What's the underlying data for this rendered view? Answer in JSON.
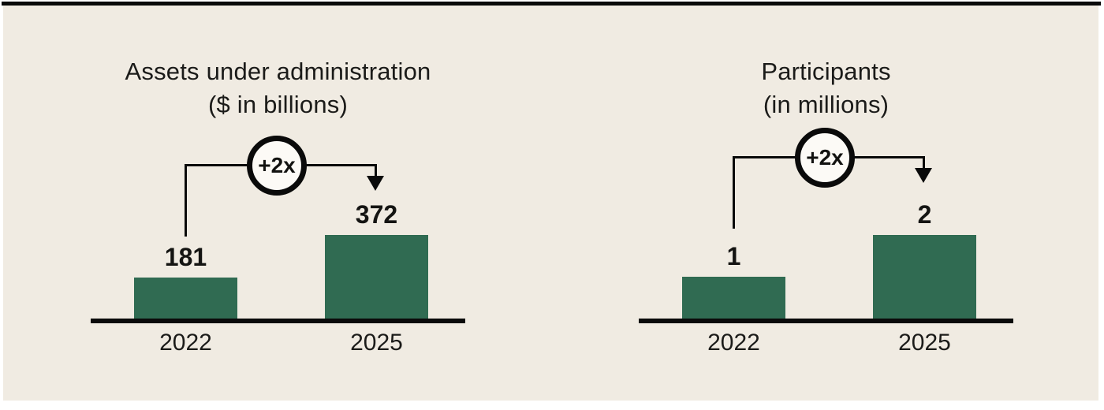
{
  "figure": {
    "background_color": "#f0ebe2",
    "top_rule_color": "#0a0a0a",
    "bar_color": "#306b52",
    "axis_color": "#0a0a0a",
    "badge_fill": "#fcfaf6",
    "text_color": "#1b1b19"
  },
  "chart_data": [
    {
      "type": "bar",
      "title": "Assets under administration",
      "subtitle": "($ in billions)",
      "categories": [
        "2022",
        "2025"
      ],
      "values": [
        181,
        372
      ],
      "value_labels": [
        "181",
        "372"
      ],
      "annotation": "+2x",
      "bar_color": "#306b52",
      "ylim": [
        0,
        372
      ],
      "grid": false,
      "legend": false
    },
    {
      "type": "bar",
      "title": "Participants",
      "subtitle": "(in millions)",
      "categories": [
        "2022",
        "2025"
      ],
      "values": [
        1,
        2
      ],
      "value_labels": [
        "1",
        "2"
      ],
      "annotation": "+2x",
      "bar_color": "#306b52",
      "ylim": [
        0,
        2
      ],
      "grid": false,
      "legend": false
    }
  ]
}
